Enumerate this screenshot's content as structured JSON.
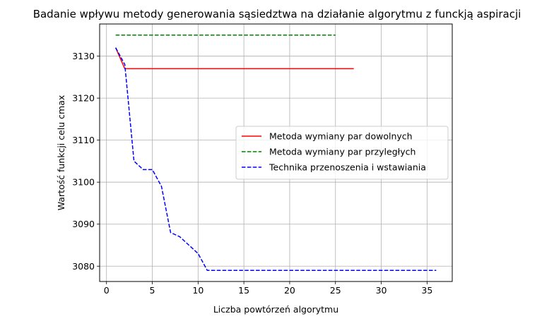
{
  "chart_data": {
    "type": "line",
    "title": "Badanie wpływu metody generowania sąsiedztwa na działanie algorytmu z funckją aspiracji",
    "xlabel": "Liczba powtórzeń algorytmu",
    "ylabel": "Wartość funkcji celu cmax",
    "xlim": [
      -0.75,
      37.75
    ],
    "ylim": [
      3076.35,
      3137.65
    ],
    "xticks": [
      0,
      5,
      10,
      15,
      20,
      25,
      30,
      35
    ],
    "yticks": [
      3080,
      3090,
      3100,
      3110,
      3120,
      3130
    ],
    "grid": true,
    "legend_position": "center-right",
    "series": [
      {
        "name": "Metoda wymiany par dowolnych",
        "color": "#ff0000",
        "dash": "solid",
        "x": [
          1,
          2,
          3,
          4,
          5,
          6,
          7,
          8,
          9,
          10,
          11,
          12,
          13,
          14,
          15,
          16,
          17,
          18,
          19,
          20,
          21,
          22,
          23,
          24,
          25,
          26,
          27
        ],
        "y": [
          3132,
          3127,
          3127,
          3127,
          3127,
          3127,
          3127,
          3127,
          3127,
          3127,
          3127,
          3127,
          3127,
          3127,
          3127,
          3127,
          3127,
          3127,
          3127,
          3127,
          3127,
          3127,
          3127,
          3127,
          3127,
          3127,
          3127
        ]
      },
      {
        "name": "Metoda wymiany par przyległych",
        "color": "#008000",
        "dash": "dashed",
        "x": [
          1,
          2,
          3,
          4,
          5,
          6,
          7,
          8,
          9,
          10,
          11,
          12,
          13,
          14,
          15,
          16,
          17,
          18,
          19,
          20,
          21,
          22,
          23,
          24,
          25
        ],
        "y": [
          3135,
          3135,
          3135,
          3135,
          3135,
          3135,
          3135,
          3135,
          3135,
          3135,
          3135,
          3135,
          3135,
          3135,
          3135,
          3135,
          3135,
          3135,
          3135,
          3135,
          3135,
          3135,
          3135,
          3135,
          3135
        ]
      },
      {
        "name": "Technika przenoszenia i wstawiania",
        "color": "#0000ff",
        "dash": "dashed",
        "x": [
          1,
          2,
          3,
          4,
          5,
          6,
          7,
          8,
          9,
          10,
          11,
          12,
          13,
          14,
          15,
          16,
          17,
          18,
          19,
          20,
          21,
          22,
          23,
          24,
          25,
          26,
          27,
          28,
          29,
          30,
          31,
          32,
          33,
          34,
          35,
          36
        ],
        "y": [
          3132,
          3128,
          3105,
          3103,
          3103,
          3099,
          3088,
          3087,
          3085,
          3083,
          3079,
          3079,
          3079,
          3079,
          3079,
          3079,
          3079,
          3079,
          3079,
          3079,
          3079,
          3079,
          3079,
          3079,
          3079,
          3079,
          3079,
          3079,
          3079,
          3079,
          3079,
          3079,
          3079,
          3079,
          3079,
          3079
        ]
      }
    ]
  }
}
